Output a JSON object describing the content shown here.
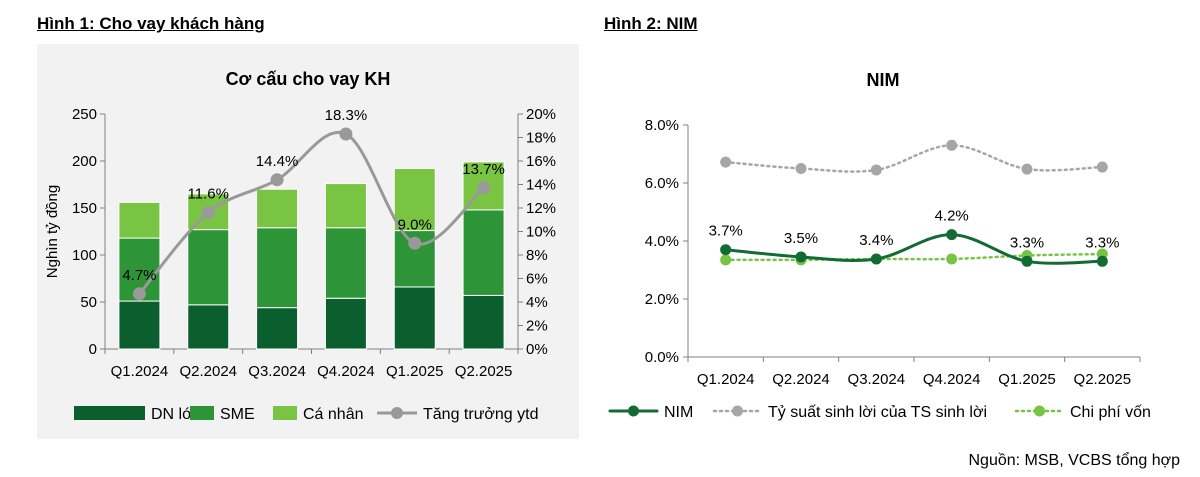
{
  "headings": {
    "fig1": "Hình 1: Cho vay khách hàng",
    "fig2": "Hình 2: NIM"
  },
  "source": "Nguồn: MSB, VCBS tổng hợp",
  "colors": {
    "dn_lon": "#0b5e2e",
    "sme": "#2e9438",
    "ca_nhan": "#7ac443",
    "growth": "#999999",
    "nim": "#136b34",
    "yield": "#a6a6a6",
    "cof": "#76c442"
  },
  "chart_data": [
    {
      "type": "bar",
      "stacked": true,
      "title": "Cơ cấu cho vay KH",
      "categories": [
        "Q1.2024",
        "Q2.2024",
        "Q3.2024",
        "Q4.2024",
        "Q1.2025",
        "Q2.2025"
      ],
      "ylabel": "Nghìn tỷ đồng",
      "ylim": [
        0,
        250
      ],
      "yticks": [
        "0",
        "50",
        "100",
        "150",
        "200",
        "250"
      ],
      "y2lim": [
        0,
        20
      ],
      "y2ticks": [
        "0%",
        "2%",
        "4%",
        "6%",
        "8%",
        "10%",
        "12%",
        "14%",
        "16%",
        "18%",
        "20%"
      ],
      "series": [
        {
          "name": "DN lớn",
          "values": [
            51,
            47,
            44,
            54,
            66,
            57
          ]
        },
        {
          "name": "SME",
          "values": [
            67,
            80,
            85,
            75,
            60,
            91
          ]
        },
        {
          "name": "Cá nhân",
          "values": [
            38,
            38,
            41,
            47,
            66,
            51
          ]
        },
        {
          "name": "Tăng trưởng ytd",
          "axis": "right",
          "type": "line",
          "values": [
            4.7,
            11.6,
            14.4,
            18.3,
            9.0,
            13.7
          ],
          "labels": [
            "4.7%",
            "11.6%",
            "14.4%",
            "18.3%",
            "9.0%",
            "13.7%"
          ]
        }
      ],
      "legend_position": "bottom",
      "grid": false
    },
    {
      "type": "line",
      "title": "NIM",
      "categories": [
        "Q1.2024",
        "Q2.2024",
        "Q3.2024",
        "Q4.2024",
        "Q1.2025",
        "Q2.2025"
      ],
      "ylim": [
        0,
        8
      ],
      "yticks": [
        "0.0%",
        "2.0%",
        "4.0%",
        "6.0%",
        "8.0%"
      ],
      "series": [
        {
          "name": "NIM",
          "values": [
            3.7,
            3.45,
            3.38,
            4.22,
            3.3,
            3.3
          ],
          "labels": [
            "3.7%",
            "3.5%",
            "3.4%",
            "4.2%",
            "3.3%",
            "3.3%"
          ]
        },
        {
          "name": "Tỷ suất sinh lời của TS sinh lời",
          "values": [
            6.72,
            6.5,
            6.45,
            7.3,
            6.48,
            6.55
          ]
        },
        {
          "name": "Chi phí vốn",
          "values": [
            3.35,
            3.35,
            3.38,
            3.38,
            3.5,
            3.55
          ]
        }
      ],
      "legend_position": "bottom",
      "grid": false
    }
  ]
}
